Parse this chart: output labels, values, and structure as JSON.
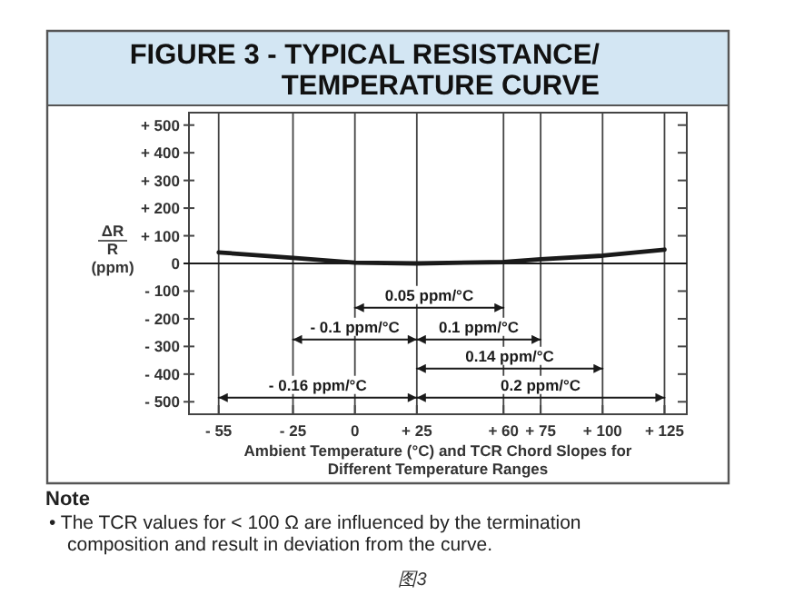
{
  "chart_data": {
    "type": "line",
    "title": "FIGURE 3 - TYPICAL RESISTANCE/\nTEMPERATURE CURVE",
    "xlabel": "Ambient Temperature (°C) and TCR Chord Slopes for\nDifferent Temperature Ranges",
    "ylabel": "ΔR\nR\n(ppm)",
    "x": [
      -55,
      -25,
      0,
      25,
      60,
      75,
      100,
      125
    ],
    "series": [
      {
        "color": "#1a1a1a",
        "values": [
          40,
          20,
          3,
          0,
          5,
          15,
          28,
          50
        ]
      },
      {
        "name": "0.05 ppm/°C",
        "color": "#1a1a1a",
        "x": [
          0,
          60
        ],
        "values": [
          -160,
          -160
        ]
      },
      {
        "name": "- 0.1 ppm/°C",
        "color": "#1a1a1a",
        "x": [
          -25,
          25
        ],
        "values": [
          -275,
          -275
        ]
      },
      {
        "name": "0.1 ppm/°C",
        "color": "#1a1a1a",
        "x": [
          25,
          75
        ],
        "values": [
          -275,
          -275
        ]
      },
      {
        "name": "0.14 ppm/°C",
        "color": "#1a1a1a",
        "x": [
          25,
          100
        ],
        "values": [
          -380,
          -380
        ]
      },
      {
        "name": "- 0.16 ppm/°C",
        "color": "#1a1a1a",
        "x": [
          -55,
          25
        ],
        "values": [
          -485,
          -485
        ]
      },
      {
        "name": "0.2 ppm/°C",
        "color": "#1a1a1a",
        "x": [
          25,
          125
        ],
        "values": [
          -485,
          -485
        ]
      }
    ],
    "xlim": [
      -67,
      134
    ],
    "ylim": [
      -545,
      545
    ],
    "xticks": [
      {
        "value": -55,
        "label": "- 55"
      },
      {
        "value": -25,
        "label": "- 25"
      },
      0,
      {
        "value": 25,
        "label": "+ 25"
      },
      {
        "value": 60,
        "label": "+ 60"
      },
      {
        "value": 75,
        "label": "+ 75"
      },
      {
        "value": 100,
        "label": "+ 100"
      },
      {
        "value": 125,
        "label": "+ 125"
      }
    ],
    "yticks": [
      {
        "value": 500,
        "label": "+ 500"
      },
      {
        "value": 400,
        "label": "+ 400"
      },
      {
        "value": 300,
        "label": "+ 300"
      },
      {
        "value": 200,
        "label": "+ 200"
      },
      {
        "value": 100,
        "label": "+ 100"
      },
      0,
      {
        "value": -100,
        "label": "- 100"
      },
      {
        "value": -200,
        "label": "- 200"
      },
      {
        "value": -300,
        "label": "- 300"
      },
      {
        "value": -400,
        "label": "- 400"
      },
      {
        "value": -500,
        "label": "- 500"
      }
    ],
    "grid": "x",
    "ref_lines": [
      {
        "axis": "y",
        "value": 0,
        "color": "#1a1a1a"
      }
    ],
    "annotations": [
      "Note",
      "• The TCR values for < 100 Ω are influenced by the termination\ncomposition and result in deviation from the curve.",
      "图3"
    ]
  }
}
